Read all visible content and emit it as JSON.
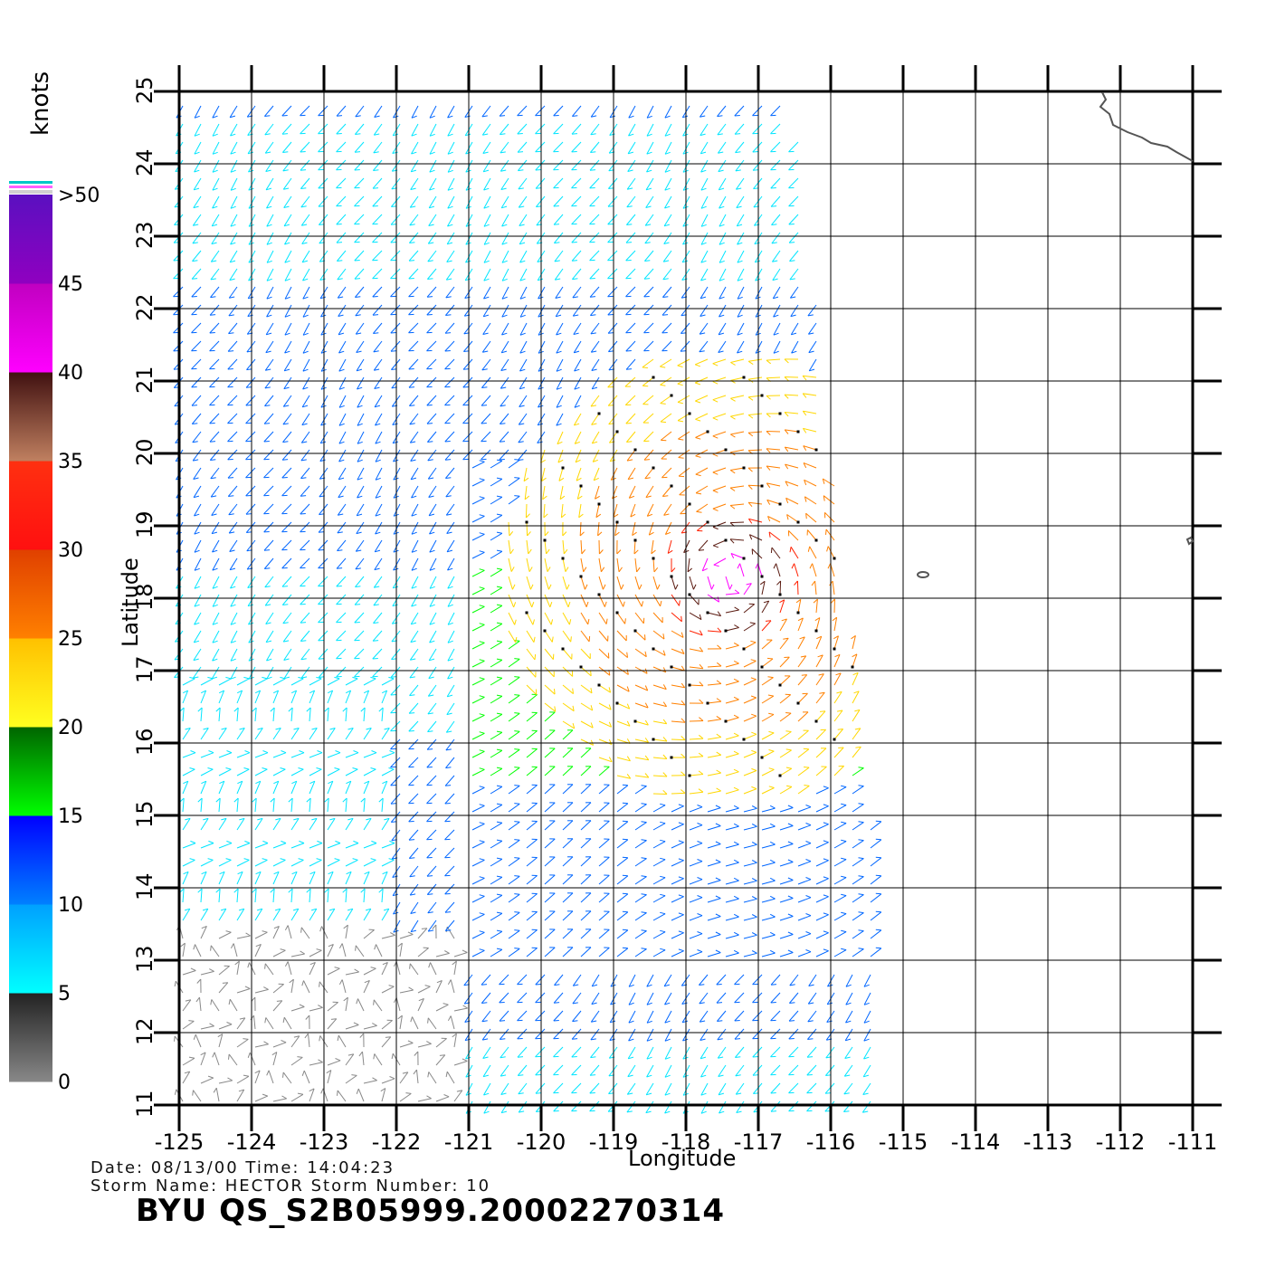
{
  "legend": {
    "unit": "knots",
    "ticks": [
      "0",
      "5",
      "10",
      "15",
      "20",
      "25",
      "30",
      "35",
      "40",
      "45",
      ">50"
    ],
    "colors": [
      "#888888",
      "#00e5ff",
      "#0066ff",
      "#00ff00",
      "#ffd700",
      "#ff8000",
      "#ff2000",
      "#5a1a10",
      "#ff00ff",
      "#6a00c0"
    ]
  },
  "axes": {
    "xlabel": "Longitude",
    "ylabel": "Latitude",
    "x_ticks": [
      "-125",
      "-124",
      "-123",
      "-122",
      "-121",
      "-120",
      "-119",
      "-118",
      "-117",
      "-116",
      "-115",
      "-114",
      "-113",
      "-112",
      "-111"
    ],
    "y_ticks": [
      "11",
      "12",
      "13",
      "14",
      "15",
      "16",
      "17",
      "18",
      "19",
      "20",
      "21",
      "22",
      "23",
      "24",
      "25"
    ],
    "lon_range": [
      -125,
      -111
    ],
    "lat_range": [
      11,
      25
    ],
    "grid": true
  },
  "footer": {
    "line1": "Date: 08/13/00   Time: 14:04:23",
    "line2": "Storm Name: HECTOR   Storm Number: 10",
    "title": "BYU  QS_S2B05999.20002270314"
  }
}
